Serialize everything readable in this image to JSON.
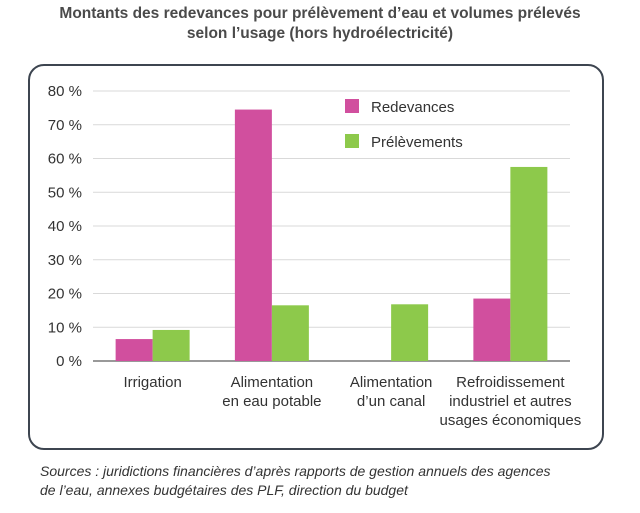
{
  "title_line1": "Montants des redevances pour prélèvement d’eau et volumes prélevés",
  "title_line2": "selon l’usage (hors hydroélectricité)",
  "source_line1": "Sources : juridictions financières d’après rapports de gestion annuels des agences",
  "source_line2": "de l’eau, annexes budgétaires des PLF, direction du budget",
  "chart_data": {
    "type": "bar",
    "categories": [
      [
        "Irrigation"
      ],
      [
        "Alimentation",
        "en eau potable"
      ],
      [
        "Alimentation",
        "d’un canal"
      ],
      [
        "Refroidissement",
        "industriel et autres",
        "usages économiques"
      ]
    ],
    "series": [
      {
        "name": "Redevances",
        "color": "#d14f9e",
        "values": [
          6.5,
          74.5,
          0,
          18.5
        ]
      },
      {
        "name": "Prélèvements",
        "color": "#8dc94b",
        "values": [
          9.2,
          16.5,
          16.8,
          57.5
        ]
      }
    ],
    "y_ticks": [
      "0 %",
      "10 %",
      "20 %",
      "30 %",
      "40 %",
      "50 %",
      "60 %",
      "70 %",
      "80 %"
    ],
    "ylim": [
      0,
      80
    ],
    "grid": true,
    "legend": "top-center"
  }
}
